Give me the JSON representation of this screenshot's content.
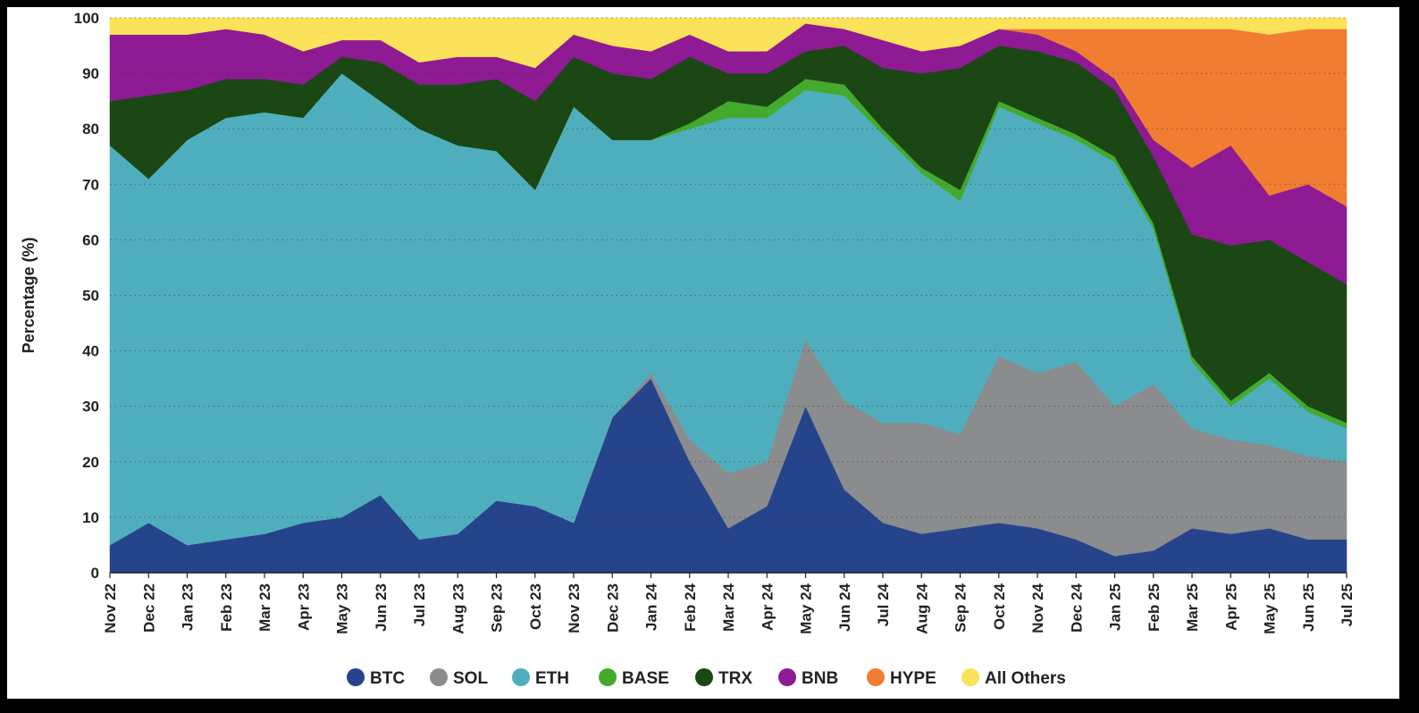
{
  "chart_data": {
    "type": "area",
    "stacked": true,
    "percent": true,
    "title": "",
    "xlabel": "",
    "ylabel": "Percentage (%)",
    "ylim": [
      0,
      100
    ],
    "yticks": [
      0,
      10,
      20,
      30,
      40,
      50,
      60,
      70,
      80,
      90,
      100
    ],
    "grid": "horizontal dotted",
    "legend_position": "bottom",
    "x": [
      "Nov 22",
      "Dec 22",
      "Jan 23",
      "Feb 23",
      "Mar 23",
      "Apr 23",
      "May 23",
      "Jun 23",
      "Jul 23",
      "Aug 23",
      "Sep 23",
      "Oct 23",
      "Nov 23",
      "Dec 23",
      "Jan 24",
      "Feb 24",
      "Mar 24",
      "Apr 24",
      "May 24",
      "Jun 24",
      "Jul 24",
      "Aug 24",
      "Sep 24",
      "Oct 24",
      "Nov 24",
      "Dec 24",
      "Jan 25",
      "Feb 25",
      "Mar 25",
      "Apr 25",
      "May 25",
      "Jun 25",
      "Jul 25"
    ],
    "series": [
      {
        "name": "BTC",
        "color": "#26448c",
        "values": [
          5,
          9,
          5,
          6,
          7,
          9,
          10,
          14,
          6,
          7,
          13,
          12,
          9,
          28,
          35,
          20,
          8,
          12,
          30,
          15,
          9,
          7,
          8,
          9,
          8,
          6,
          3,
          4,
          8,
          7,
          8,
          6,
          6
        ]
      },
      {
        "name": "SOL",
        "color": "#8a8c8e",
        "values": [
          0,
          0,
          0,
          0,
          0,
          0,
          0,
          0,
          0,
          0,
          0,
          0,
          0,
          0,
          1,
          4,
          10,
          8,
          12,
          16,
          18,
          20,
          17,
          30,
          28,
          32,
          27,
          30,
          18,
          17,
          15,
          15,
          14
        ]
      },
      {
        "name": "ETH",
        "color": "#4faebd",
        "values": [
          72,
          62,
          73,
          76,
          76,
          73,
          80,
          71,
          74,
          70,
          63,
          57,
          75,
          50,
          42,
          56,
          64,
          62,
          45,
          55,
          52,
          45,
          42,
          45,
          45,
          40,
          44,
          28,
          12,
          6,
          12,
          8,
          6
        ]
      },
      {
        "name": "BASE",
        "color": "#44aa2e",
        "values": [
          0,
          0,
          0,
          0,
          0,
          0,
          0,
          0,
          0,
          0,
          0,
          0,
          0,
          0,
          0,
          1,
          3,
          2,
          2,
          2,
          1,
          1,
          2,
          1,
          1,
          1,
          1,
          1,
          1,
          1,
          1,
          1,
          1
        ]
      },
      {
        "name": "TRX",
        "color": "#1b4714",
        "values": [
          8,
          15,
          9,
          7,
          6,
          6,
          3,
          7,
          8,
          11,
          13,
          16,
          9,
          12,
          11,
          12,
          5,
          6,
          5,
          7,
          11,
          17,
          22,
          10,
          12,
          13,
          12,
          12,
          22,
          28,
          24,
          26,
          25
        ]
      },
      {
        "name": "BNB",
        "color": "#8e1a94",
        "values": [
          12,
          11,
          10,
          9,
          8,
          6,
          3,
          4,
          4,
          5,
          4,
          6,
          4,
          5,
          5,
          4,
          4,
          4,
          5,
          3,
          5,
          4,
          4,
          3,
          3,
          2,
          2,
          3,
          12,
          18,
          8,
          14,
          14
        ]
      },
      {
        "name": "HYPE",
        "color": "#f07d32",
        "values": [
          0,
          0,
          0,
          0,
          0,
          0,
          0,
          0,
          0,
          0,
          0,
          0,
          0,
          0,
          0,
          0,
          0,
          0,
          0,
          0,
          0,
          0,
          0,
          0,
          1,
          4,
          9,
          20,
          25,
          21,
          29,
          28,
          32
        ]
      },
      {
        "name": "All Others",
        "color": "#fae25a",
        "values": [
          3,
          3,
          3,
          2,
          3,
          6,
          4,
          4,
          8,
          7,
          7,
          9,
          3,
          5,
          6,
          3,
          6,
          6,
          1,
          2,
          4,
          6,
          5,
          2,
          2,
          2,
          2,
          2,
          2,
          2,
          3,
          2,
          2
        ]
      }
    ]
  }
}
